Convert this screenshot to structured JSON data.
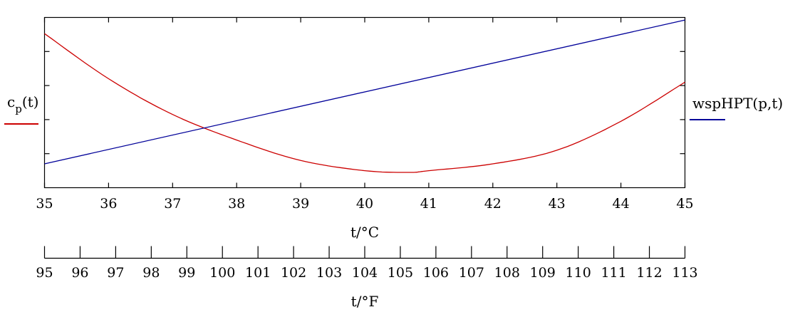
{
  "chart_data": {
    "type": "line",
    "x_label": "t/°C",
    "x_label_secondary": "t/°F",
    "xlim": [
      35,
      45
    ],
    "x_ticks": [
      35,
      36,
      37,
      38,
      39,
      40,
      41,
      42,
      43,
      44,
      45
    ],
    "x_secondary_ticks": [
      95,
      96,
      97,
      98,
      99,
      100,
      101,
      102,
      103,
      104,
      105,
      106,
      107,
      108,
      109,
      110,
      111,
      112,
      113
    ],
    "left_y_label": {
      "base": "c",
      "sub": "p",
      "rest": "(t)"
    },
    "right_y_label": "wspHPT(p,t)",
    "grid": false,
    "y_tick_labels_shown": false,
    "series": [
      {
        "name": "c_p(t)",
        "axis": "left",
        "color": "#cc0000",
        "x": [
          35,
          36,
          37,
          38,
          39,
          40,
          40.7,
          41,
          42,
          43,
          44,
          45
        ],
        "y": [
          0.905,
          0.64,
          0.43,
          0.28,
          0.16,
          0.1,
          0.09,
          0.1,
          0.14,
          0.22,
          0.39,
          0.62
        ]
      },
      {
        "name": "wspHPT(p,t)",
        "axis": "right",
        "color": "#000099",
        "x": [
          35,
          45
        ],
        "y": [
          0.14,
          0.985
        ]
      }
    ]
  }
}
